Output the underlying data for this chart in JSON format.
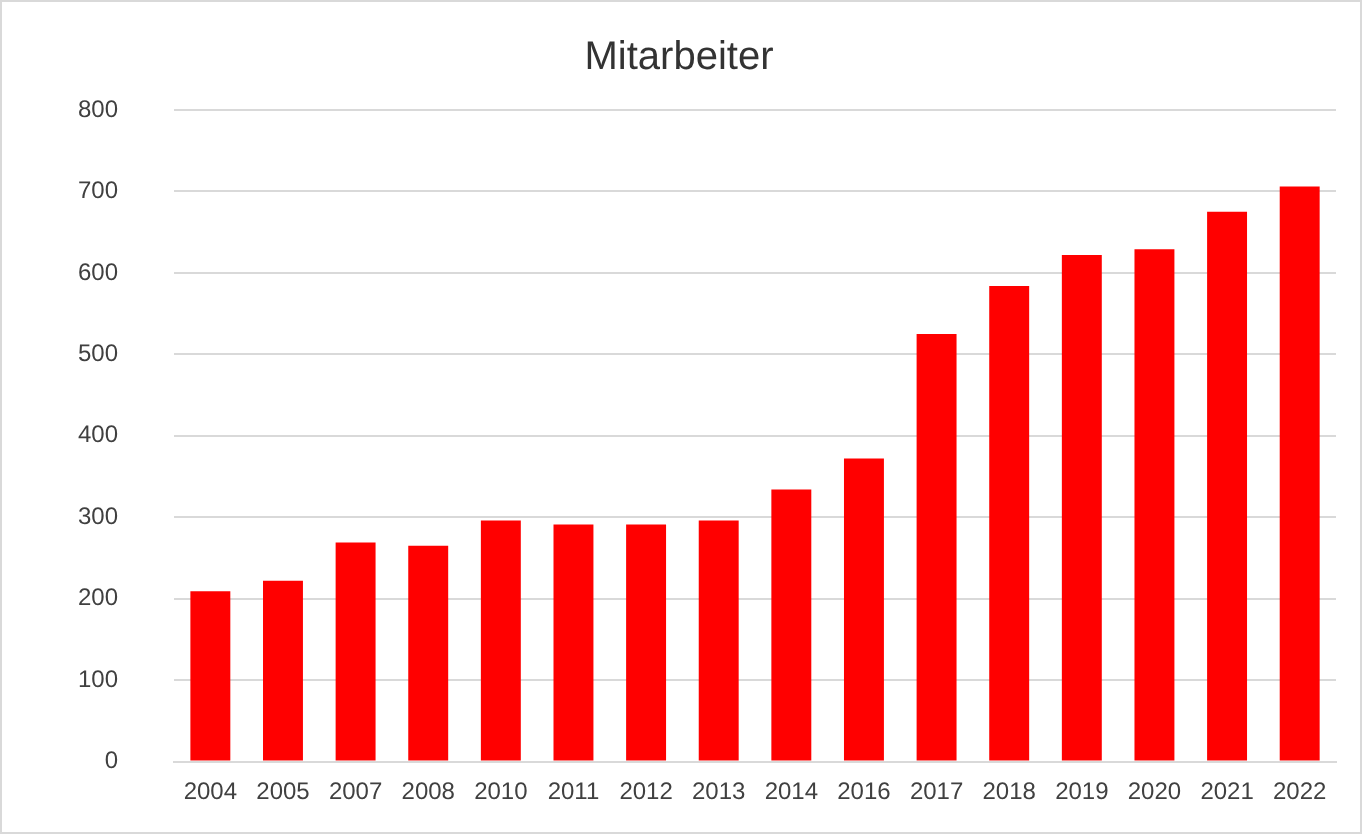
{
  "chart_data": {
    "type": "bar",
    "title": "Mitarbeiter",
    "categories": [
      "2004",
      "2005",
      "2007",
      "2008",
      "2010",
      "2011",
      "2012",
      "2013",
      "2014",
      "2016",
      "2017",
      "2018",
      "2019",
      "2020",
      "2021",
      "2022"
    ],
    "values": [
      209,
      222,
      269,
      265,
      296,
      291,
      291,
      296,
      334,
      372,
      525,
      584,
      622,
      629,
      675,
      706
    ],
    "color": "#ff0000",
    "ylim": [
      0,
      800
    ],
    "yticks": [
      0,
      100,
      200,
      300,
      400,
      500,
      600,
      700,
      800
    ],
    "grid": "y",
    "legend": false
  }
}
